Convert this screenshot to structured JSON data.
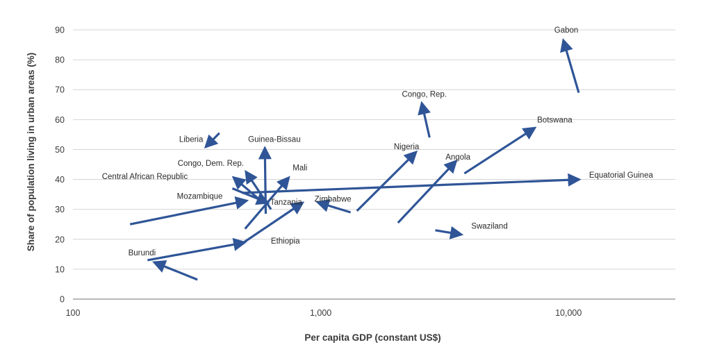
{
  "chart_data": {
    "type": "scatter",
    "xlabel": "Per capita GDP (constant US$)",
    "ylabel": "Share of population living in urban areas (%)",
    "x_scale": "log",
    "xlim": [
      100,
      27000
    ],
    "ylim": [
      0,
      90
    ],
    "xticks": [
      100,
      1000,
      10000
    ],
    "xtick_labels": [
      "100",
      "1,000",
      "10,000"
    ],
    "yticks": [
      0,
      10,
      20,
      30,
      40,
      50,
      60,
      70,
      80,
      90
    ],
    "ytick_labels": [
      "0",
      "10",
      "20",
      "30",
      "40",
      "50",
      "60",
      "70",
      "80",
      "90"
    ],
    "grid": "horizontal",
    "arrow_color": "#2f5597",
    "series": [
      {
        "name": "Gabon",
        "from": [
          11000,
          69
        ],
        "to": [
          9500,
          87
        ]
      },
      {
        "name": "Congo, Rep.",
        "from": [
          2750,
          54
        ],
        "to": [
          2550,
          66
        ]
      },
      {
        "name": "Botswana",
        "from": [
          3800,
          42
        ],
        "to": [
          7400,
          57.5
        ]
      },
      {
        "name": "Nigeria",
        "from": [
          1400,
          29.5
        ],
        "to": [
          2450,
          49.5
        ]
      },
      {
        "name": "Angola",
        "from": [
          2050,
          25.5
        ],
        "to": [
          3550,
          46.5
        ]
      },
      {
        "name": "Equatorial Guinea",
        "from": [
          480,
          35.5
        ],
        "to": [
          11200,
          40
        ]
      },
      {
        "name": "Swaziland",
        "from": [
          2900,
          23
        ],
        "to": [
          3750,
          21.5
        ]
      },
      {
        "name": "Liberia",
        "from": [
          390,
          55.5
        ],
        "to": [
          340,
          50.5
        ]
      },
      {
        "name": "Guinea-Bissau",
        "from": [
          600,
          28.5
        ],
        "to": [
          595,
          51
        ]
      },
      {
        "name": "Congo, Dem. Rep.",
        "from": [
          630,
          30
        ],
        "to": [
          495,
          43
        ]
      },
      {
        "name": "Central African Republic",
        "from": [
          590,
          32
        ],
        "to": [
          440,
          41
        ]
      },
      {
        "name": "Mali",
        "from": [
          495,
          23.5
        ],
        "to": [
          750,
          41
        ]
      },
      {
        "name": "Mozambique",
        "from": [
          170,
          25
        ],
        "to": [
          510,
          33
        ]
      },
      {
        "name": "Tanzania",
        "from": [
          440,
          37
        ],
        "to": [
          620,
          32
        ]
      },
      {
        "name": "Zimbabwe",
        "from": [
          1320,
          29
        ],
        "to": [
          960,
          32.5
        ]
      },
      {
        "name": "Ethiopia",
        "from": [
          200,
          13
        ],
        "to": [
          500,
          19
        ]
      },
      {
        "name": "Ethiopia",
        "from": [
          480,
          18.5
        ],
        "to": [
          855,
          32.5
        ]
      },
      {
        "name": "Burundi",
        "from": [
          318,
          6.5
        ],
        "to": [
          210,
          12.5
        ]
      }
    ],
    "labels": [
      {
        "text": "Gabon",
        "x": 9800,
        "y": 90
      },
      {
        "text": "Congo, Rep.",
        "x": 2620,
        "y": 68.5
      },
      {
        "text": "Botswana",
        "x": 8800,
        "y": 60
      },
      {
        "text": "Nigeria",
        "x": 2220,
        "y": 51
      },
      {
        "text": "Angola",
        "x": 3580,
        "y": 47.5
      },
      {
        "text": "Equatorial Guinea",
        "x": 16300,
        "y": 41.5
      },
      {
        "text": "Swaziland",
        "x": 4800,
        "y": 24.5
      },
      {
        "text": "Liberia",
        "x": 300,
        "y": 53.5
      },
      {
        "text": "Guinea-Bissau",
        "x": 650,
        "y": 53.5
      },
      {
        "text": "Congo, Dem. Rep.",
        "x": 360,
        "y": 45.5
      },
      {
        "text": "Central African Republic",
        "x": 195,
        "y": 41
      },
      {
        "text": "Mali",
        "x": 825,
        "y": 44
      },
      {
        "text": "Mozambique",
        "x": 325,
        "y": 34.5
      },
      {
        "text": "Tanzania",
        "x": 725,
        "y": 32.5
      },
      {
        "text": "Zimbabwe",
        "x": 1120,
        "y": 33.5
      },
      {
        "text": "Ethiopia",
        "x": 720,
        "y": 19.5
      },
      {
        "text": "Burundi",
        "x": 190,
        "y": 15.5
      }
    ]
  }
}
